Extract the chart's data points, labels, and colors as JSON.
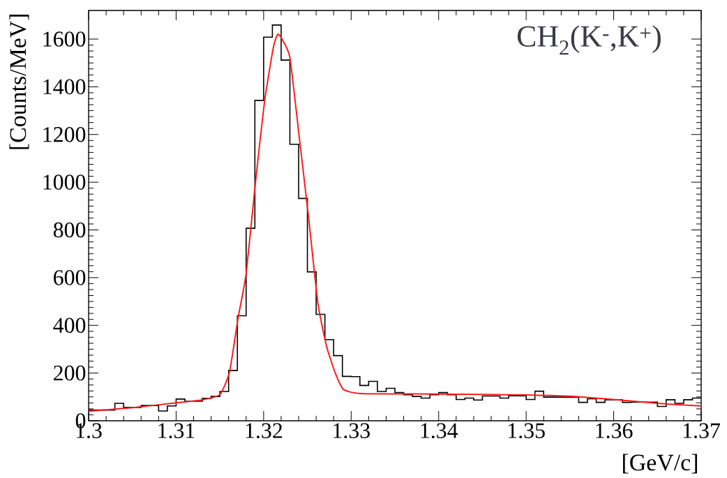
{
  "chart_data": {
    "type": "histogram",
    "xlabel": "[GeV/c]",
    "ylabel": "[Counts/MeV]",
    "annotations": [
      "CH$_{2}$(K$^{-}$,K$^{+}$)"
    ],
    "xlim": [
      1.3,
      1.37
    ],
    "ylim": [
      0,
      1720
    ],
    "xticks": [
      1.3,
      1.31,
      1.32,
      1.33,
      1.34,
      1.35,
      1.36,
      1.37
    ],
    "yticks": [
      0,
      200,
      400,
      600,
      800,
      1000,
      1200,
      1400,
      1600
    ],
    "series": [
      {
        "color": "#000000",
        "bins": [
          1.3,
          1.301,
          1.302,
          1.303,
          1.304,
          1.305,
          1.306,
          1.307,
          1.308,
          1.309,
          1.31,
          1.311,
          1.312,
          1.313,
          1.314,
          1.315,
          1.316,
          1.317,
          1.318,
          1.319,
          1.32,
          1.321,
          1.322,
          1.323,
          1.324,
          1.325,
          1.326,
          1.327,
          1.328,
          1.329,
          1.33,
          1.331,
          1.332,
          1.333,
          1.334,
          1.335,
          1.336,
          1.337,
          1.338,
          1.339,
          1.34,
          1.341,
          1.342,
          1.343,
          1.344,
          1.345,
          1.346,
          1.347,
          1.348,
          1.349,
          1.35,
          1.351,
          1.352,
          1.353,
          1.354,
          1.355,
          1.356,
          1.357,
          1.358,
          1.359,
          1.36,
          1.361,
          1.362,
          1.363,
          1.364,
          1.365,
          1.366,
          1.367,
          1.368,
          1.369,
          1.37
        ],
        "values": [
          45,
          45,
          45,
          73,
          56,
          56,
          64,
          64,
          41,
          62,
          91,
          82,
          82,
          94,
          102,
          123,
          211,
          440,
          807,
          1343,
          1608,
          1659,
          1512,
          1159,
          932,
          624,
          446,
          340,
          273,
          186,
          185,
          148,
          165,
          123,
          136,
          118,
          109,
          102,
          95,
          109,
          118,
          109,
          89,
          95,
          87,
          104,
          104,
          95,
          105,
          105,
          89,
          124,
          99,
          99,
          99,
          99,
          77,
          92,
          77,
          88,
          88,
          77,
          78,
          78,
          78,
          60,
          88,
          73,
          88,
          95
        ]
      },
      {
        "type": "line",
        "color": "#ff1a1a",
        "x": [
          1.3,
          1.305,
          1.31,
          1.313,
          1.315,
          1.3161,
          1.3171,
          1.318,
          1.3191,
          1.3201,
          1.3211,
          1.3216,
          1.3221,
          1.323,
          1.3241,
          1.3251,
          1.3262,
          1.3272,
          1.3282,
          1.3291,
          1.3311,
          1.34,
          1.35,
          1.355,
          1.36,
          1.365,
          1.37
        ],
        "values": [
          40,
          55,
          75,
          88,
          110,
          204,
          435,
          616,
          1011,
          1337,
          1563,
          1620,
          1600,
          1523,
          1179,
          864,
          493,
          311,
          199,
          132,
          114,
          112,
          108,
          103,
          89,
          73,
          62
        ]
      }
    ]
  }
}
